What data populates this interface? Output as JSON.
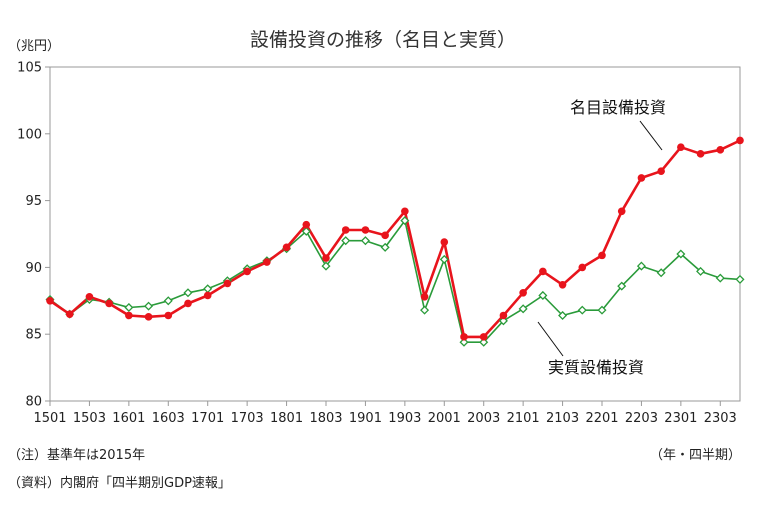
{
  "chart_data": {
    "type": "line",
    "title": "設備投資の推移（名目と実質）",
    "y_unit": "（兆円）",
    "ylim": [
      80,
      105
    ],
    "y_ticks": [
      80,
      85,
      90,
      95,
      100,
      105
    ],
    "x_tick_labels": [
      "1501",
      "1503",
      "1601",
      "1603",
      "1701",
      "1703",
      "1801",
      "1803",
      "1901",
      "1903",
      "2001",
      "2003",
      "2101",
      "2103",
      "2201",
      "2203",
      "2301",
      "2303"
    ],
    "x": [
      "1501",
      "1502",
      "1503",
      "1504",
      "1601",
      "1602",
      "1603",
      "1604",
      "1701",
      "1702",
      "1703",
      "1704",
      "1801",
      "1802",
      "1803",
      "1804",
      "1901",
      "1902",
      "1903",
      "1904",
      "2001",
      "2002",
      "2003",
      "2004",
      "2101",
      "2102",
      "2103",
      "2104",
      "2201",
      "2202",
      "2203",
      "2204",
      "2301",
      "2302",
      "2303",
      "2304"
    ],
    "grid": "none",
    "series": [
      {
        "name": "名目設備投資",
        "color": "#e8141c",
        "marker": "filled-circle",
        "values": [
          87.5,
          86.5,
          87.8,
          87.3,
          86.4,
          86.3,
          86.4,
          87.3,
          87.9,
          88.8,
          89.7,
          90.4,
          91.5,
          93.2,
          90.7,
          92.8,
          92.8,
          92.4,
          94.2,
          87.8,
          91.9,
          84.8,
          84.8,
          86.4,
          88.1,
          89.7,
          88.7,
          90.0,
          90.9,
          94.2,
          96.7,
          97.2,
          99.0,
          98.5,
          98.8,
          99.5
        ]
      },
      {
        "name": "実質設備投資",
        "color": "#2a9b3a",
        "marker": "open-diamond",
        "values": [
          87.6,
          86.5,
          87.6,
          87.4,
          87.0,
          87.1,
          87.5,
          88.1,
          88.4,
          89.0,
          89.9,
          90.5,
          91.4,
          92.7,
          90.1,
          92.0,
          92.0,
          91.5,
          93.5,
          86.8,
          90.6,
          84.4,
          84.4,
          86.0,
          86.9,
          87.9,
          86.4,
          86.8,
          86.8,
          88.6,
          90.1,
          89.6,
          91.0,
          89.7,
          89.2,
          89.1
        ]
      }
    ]
  },
  "notes": {
    "base_year": "（注）基準年は2015年",
    "source": "（資料）内閣府「四半期別GDP速報」",
    "x_unit": "（年・四半期）"
  }
}
